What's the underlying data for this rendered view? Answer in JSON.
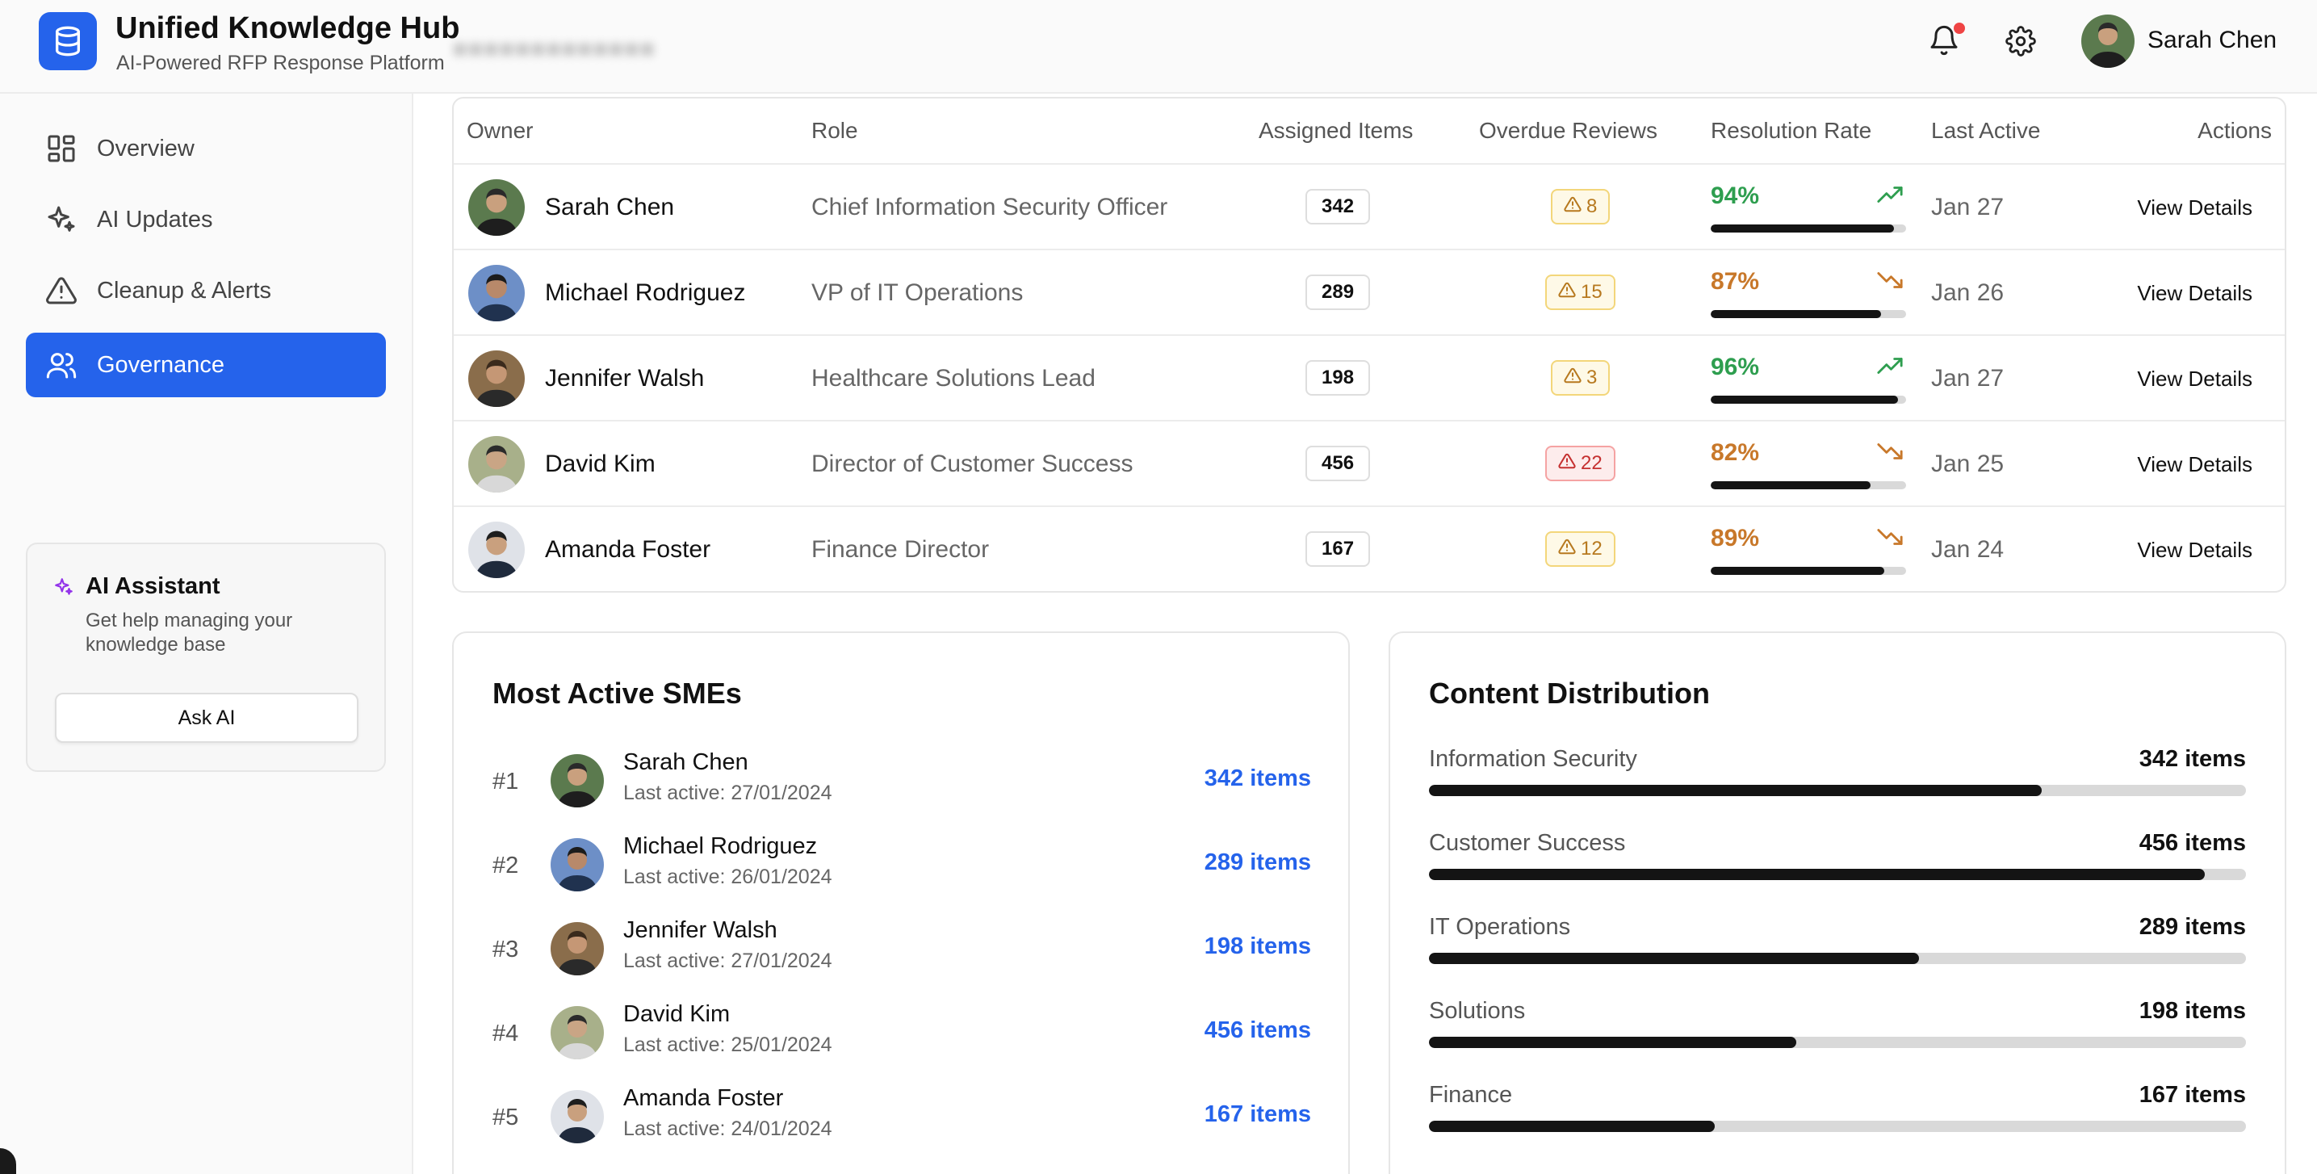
{
  "header": {
    "app_title": "Unified Knowledge Hub",
    "app_subtitle": "AI-Powered RFP Response Platform",
    "user_name": "Sarah Chen",
    "icons": {
      "logo": "database-icon",
      "notifications": "bell-icon",
      "settings": "gear-icon"
    },
    "notification_dot_color": "#ef4444"
  },
  "sidebar": {
    "items": [
      {
        "label": "Overview",
        "icon": "grid-icon",
        "active": false
      },
      {
        "label": "AI Updates",
        "icon": "sparkles-icon",
        "active": false
      },
      {
        "label": "Cleanup & Alerts",
        "icon": "alert-triangle-icon",
        "active": false
      },
      {
        "label": "Governance",
        "icon": "users-icon",
        "active": true
      }
    ],
    "ai_assistant": {
      "title": "AI Assistant",
      "description": "Get help managing your knowledge base",
      "button_label": "Ask AI"
    }
  },
  "owners_table": {
    "columns": [
      "Owner",
      "Role",
      "Assigned Items",
      "Overdue Reviews",
      "Resolution Rate",
      "Last Active",
      "Actions"
    ],
    "rows": [
      {
        "owner": "Sarah Chen",
        "role": "Chief Information Security Officer",
        "assigned": "342",
        "overdue": "8",
        "overdue_level": "warn",
        "rate": "94%",
        "rate_value": 0.94,
        "trend": "up",
        "last_active": "Jan 27",
        "action": "View Details"
      },
      {
        "owner": "Michael Rodriguez",
        "role": "VP of IT Operations",
        "assigned": "289",
        "overdue": "15",
        "overdue_level": "warn",
        "rate": "87%",
        "rate_value": 0.87,
        "trend": "down",
        "last_active": "Jan 26",
        "action": "View Details"
      },
      {
        "owner": "Jennifer Walsh",
        "role": "Healthcare Solutions Lead",
        "assigned": "198",
        "overdue": "3",
        "overdue_level": "warn",
        "rate": "96%",
        "rate_value": 0.96,
        "trend": "up",
        "last_active": "Jan 27",
        "action": "View Details"
      },
      {
        "owner": "David Kim",
        "role": "Director of Customer Success",
        "assigned": "456",
        "overdue": "22",
        "overdue_level": "danger",
        "rate": "82%",
        "rate_value": 0.82,
        "trend": "down",
        "last_active": "Jan 25",
        "action": "View Details"
      },
      {
        "owner": "Amanda Foster",
        "role": "Finance Director",
        "assigned": "167",
        "overdue": "12",
        "overdue_level": "warn",
        "rate": "89%",
        "rate_value": 0.89,
        "trend": "down",
        "last_active": "Jan 24",
        "action": "View Details"
      }
    ]
  },
  "most_active": {
    "title": "Most Active SMEs",
    "items": [
      {
        "rank": "#1",
        "name": "Sarah Chen",
        "last_active": "Last active: 27/01/2024",
        "items": "342 items"
      },
      {
        "rank": "#2",
        "name": "Michael Rodriguez",
        "last_active": "Last active: 26/01/2024",
        "items": "289 items"
      },
      {
        "rank": "#3",
        "name": "Jennifer Walsh",
        "last_active": "Last active: 27/01/2024",
        "items": "198 items"
      },
      {
        "rank": "#4",
        "name": "David Kim",
        "last_active": "Last active: 25/01/2024",
        "items": "456 items"
      },
      {
        "rank": "#5",
        "name": "Amanda Foster",
        "last_active": "Last active: 24/01/2024",
        "items": "167 items"
      }
    ]
  },
  "content_distribution": {
    "title": "Content Distribution",
    "items": [
      {
        "label": "Information Security",
        "count": "342 items",
        "fraction": 0.75
      },
      {
        "label": "Customer Success",
        "count": "456 items",
        "fraction": 0.95
      },
      {
        "label": "IT Operations",
        "count": "289 items",
        "fraction": 0.6
      },
      {
        "label": "Solutions",
        "count": "198 items",
        "fraction": 0.45
      },
      {
        "label": "Finance",
        "count": "167 items",
        "fraction": 0.35
      }
    ]
  },
  "colors": {
    "accent": "#2563eb",
    "trend_up": "#2e9e4f",
    "trend_down": "#c8782a",
    "warn": "#b7791f",
    "danger": "#c53030"
  }
}
